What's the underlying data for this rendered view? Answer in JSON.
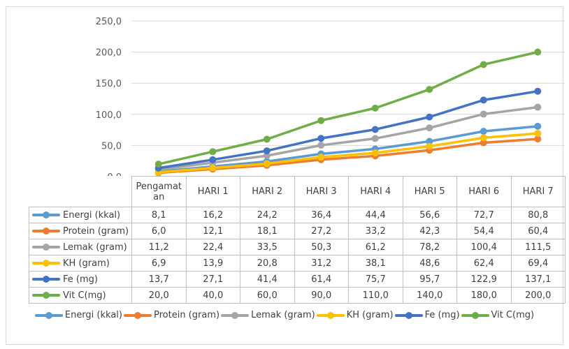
{
  "chart_data": {
    "type": "line",
    "categories": [
      "Pengamat an",
      "HARI 1",
      "HARI 2",
      "HARI 3",
      "HARI 4",
      "HARI 5",
      "HARI 6",
      "HARI 7"
    ],
    "yticks": [
      "0,0",
      "50,0",
      "100,0",
      "150,0",
      "200,0",
      "250,0"
    ],
    "ylim": [
      0,
      250
    ],
    "grid": true,
    "legend_position": "bottom",
    "series": [
      {
        "name": "Energi (kkal)",
        "color": "#5b9bd5",
        "values": [
          8.1,
          16.2,
          24.2,
          36.4,
          44.4,
          56.6,
          72.7,
          80.8
        ],
        "labels": [
          "8,1",
          "16,2",
          "24,2",
          "36,4",
          "44,4",
          "56,6",
          "72,7",
          "80,8"
        ]
      },
      {
        "name": "Protein (gram)",
        "color": "#ed7d31",
        "values": [
          6.0,
          12.1,
          18.1,
          27.2,
          33.2,
          42.3,
          54.4,
          60.4
        ],
        "labels": [
          "6,0",
          "12,1",
          "18,1",
          "27,2",
          "33,2",
          "42,3",
          "54,4",
          "60,4"
        ]
      },
      {
        "name": "Lemak (gram)",
        "color": "#a5a5a5",
        "values": [
          11.2,
          22.4,
          33.5,
          50.3,
          61.2,
          78.2,
          100.4,
          111.5
        ],
        "labels": [
          "11,2",
          "22,4",
          "33,5",
          "50,3",
          "61,2",
          "78,2",
          "100,4",
          "111,5"
        ]
      },
      {
        "name": "KH (gram)",
        "color": "#ffc000",
        "values": [
          6.9,
          13.9,
          20.8,
          31.2,
          38.1,
          48.6,
          62.4,
          69.4
        ],
        "labels": [
          "6,9",
          "13,9",
          "20,8",
          "31,2",
          "38,1",
          "48,6",
          "62,4",
          "69,4"
        ]
      },
      {
        "name": "Fe (mg)",
        "color": "#4472c4",
        "values": [
          13.7,
          27.1,
          41.4,
          61.4,
          75.7,
          95.7,
          122.9,
          137.1
        ],
        "labels": [
          "13,7",
          "27,1",
          "41,4",
          "61,4",
          "75,7",
          "95,7",
          "122,9",
          "137,1"
        ]
      },
      {
        "name": "Vit C(mg)",
        "color": "#70ad47",
        "values": [
          20.0,
          40.0,
          60.0,
          90.0,
          110.0,
          140.0,
          180.0,
          200.0
        ],
        "labels": [
          "20,0",
          "40,0",
          "60,0",
          "90,0",
          "110,0",
          "140,0",
          "180,0",
          "200,0"
        ]
      }
    ]
  }
}
